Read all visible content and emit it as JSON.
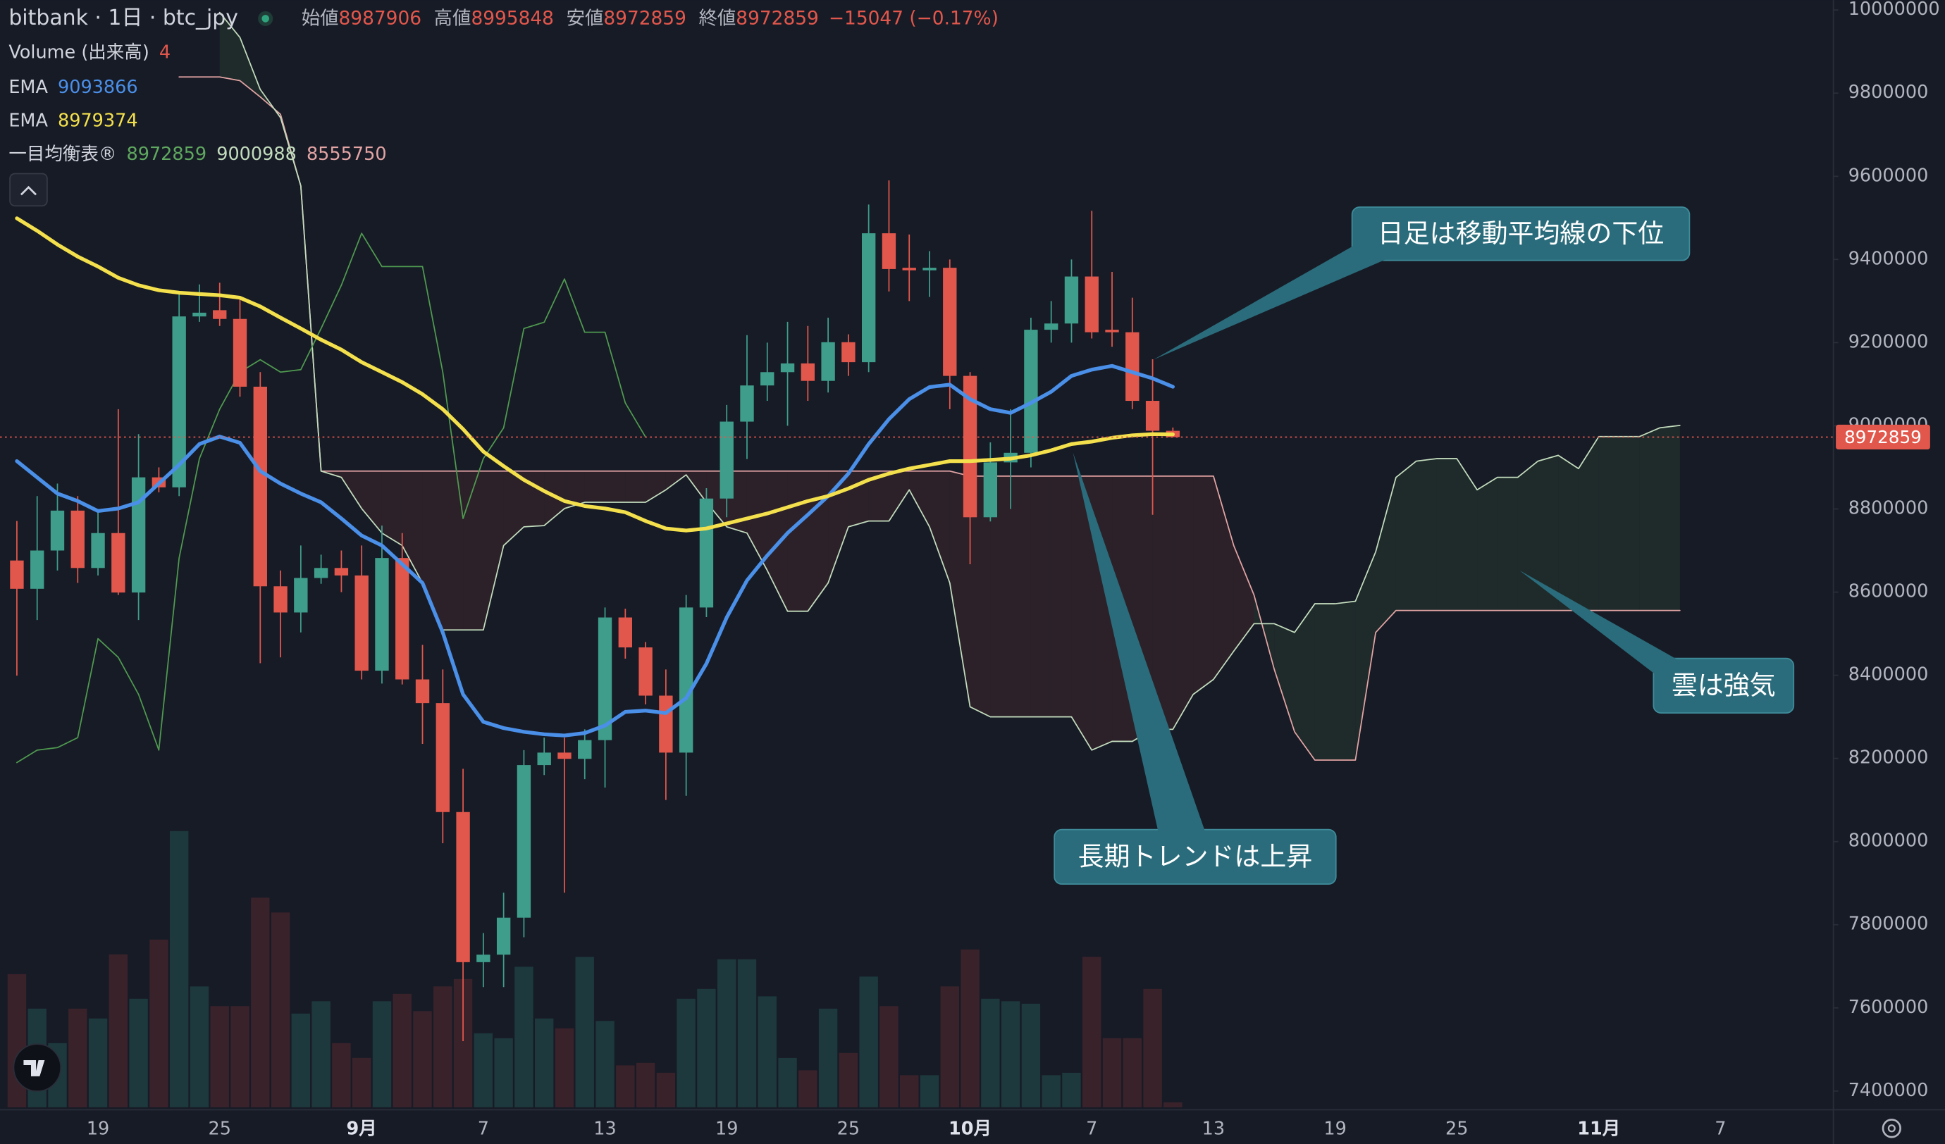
{
  "chart_data": {
    "type": "candlestick",
    "title": "bitbank · 1日 · btc_jpy",
    "categories": [
      null,
      null,
      null,
      null,
      "19",
      null,
      null,
      null,
      null,
      null,
      "25",
      null,
      null,
      null,
      null,
      null,
      null,
      "9月",
      null,
      null,
      null,
      null,
      null,
      "7",
      null,
      null,
      null,
      null,
      null,
      "13",
      null,
      null,
      null,
      null,
      null,
      "19",
      null,
      null,
      null,
      null,
      null,
      "25",
      null,
      null,
      null,
      null,
      null,
      "10月",
      null,
      null,
      null,
      null,
      null,
      "7",
      null,
      null,
      null,
      null,
      null,
      "13",
      null,
      null,
      null,
      null,
      null,
      "19",
      null,
      null,
      null,
      null,
      null,
      "25",
      null,
      null,
      null,
      null,
      null,
      null,
      "11月",
      null,
      null,
      null,
      null,
      null,
      "7",
      null,
      null,
      null,
      null
    ],
    "ohlc_labels": [
      "始値",
      "高値",
      "安値",
      "終値"
    ],
    "change_label": "−15047 (−0.17%)",
    "up_color": "#3f9e8b",
    "down_color": "#e2574c",
    "open": [
      8676000,
      8608000,
      8700000,
      8796000,
      8658000,
      8742000,
      8599000,
      8876000,
      8852000,
      9263000,
      9278000,
      9257000,
      9094000,
      8614000,
      8551000,
      8634000,
      8658000,
      8640000,
      8411000,
      8682000,
      8390000,
      8333000,
      8071000,
      7710000,
      7728000,
      7817000,
      8184000,
      8214000,
      8199000,
      8244000,
      8539000,
      8467000,
      8351000,
      8214000,
      8563000,
      8825000,
      9010000,
      9097000,
      9129000,
      9150000,
      9108000,
      9201000,
      9153000,
      9463000,
      9380000,
      9374000,
      9380000,
      9120000,
      8780000,
      8912000,
      8935000,
      9231000,
      9246000,
      9359000,
      9231000,
      9225000,
      9060000,
      8987906,
      null,
      null,
      null,
      null,
      null,
      null,
      null,
      null,
      null,
      null,
      null,
      null,
      null,
      null,
      null,
      null,
      null,
      null,
      null,
      null,
      null,
      null,
      null,
      null,
      null,
      null,
      null,
      null,
      null,
      null,
      null
    ],
    "high": [
      8771000,
      8831000,
      8861000,
      8831000,
      8800000,
      9040000,
      8980000,
      8900000,
      9323000,
      9340000,
      9344000,
      9308000,
      9129000,
      8652000,
      8712000,
      8690000,
      8700000,
      8712000,
      8760000,
      8742000,
      8473000,
      8414000,
      8175000,
      7780000,
      7877000,
      8220000,
      8250000,
      8250000,
      8270000,
      8563000,
      8560000,
      8480000,
      8414000,
      8593000,
      8850000,
      9050000,
      9218000,
      9200000,
      9250000,
      9240000,
      9260000,
      9220000,
      9532000,
      9590000,
      9460000,
      9420000,
      9400000,
      9129000,
      8960000,
      9040000,
      9260000,
      9300000,
      9400000,
      9517000,
      9370000,
      9308000,
      9160000,
      8995848,
      null,
      null,
      null,
      null,
      null,
      null,
      null,
      null,
      null,
      null,
      null,
      null,
      null,
      null,
      null,
      null,
      null,
      null,
      null,
      null,
      null,
      null,
      null,
      null,
      null,
      null,
      null,
      null,
      null,
      null,
      null
    ],
    "low": [
      8399000,
      8533000,
      8652000,
      8622000,
      8640000,
      8593000,
      8533000,
      8840000,
      8831000,
      9250000,
      9240000,
      9070000,
      8429000,
      8443000,
      8503000,
      8620000,
      8600000,
      8390000,
      8380000,
      8378000,
      8235000,
      7996000,
      7520000,
      7650000,
      7650000,
      7770000,
      8160000,
      7877000,
      8150000,
      8130000,
      8440000,
      8330000,
      8100000,
      8110000,
      8540000,
      8780000,
      8920000,
      9060000,
      9000000,
      9060000,
      9080000,
      9120000,
      9129000,
      9323000,
      9300000,
      9310000,
      9040000,
      8667000,
      8770000,
      8800000,
      8900000,
      9200000,
      9200000,
      9210000,
      9190000,
      9040000,
      8786000,
      8972859,
      null,
      null,
      null,
      null,
      null,
      null,
      null,
      null,
      null,
      null,
      null,
      null,
      null,
      null,
      null,
      null,
      null,
      null,
      null,
      null,
      null,
      null,
      null,
      null,
      null,
      null,
      null,
      null,
      null,
      null,
      null
    ],
    "close": [
      8608000,
      8700000,
      8796000,
      8658000,
      8742000,
      8599000,
      8876000,
      8852000,
      9263000,
      9272000,
      9257000,
      9094000,
      8614000,
      8551000,
      8634000,
      8658000,
      8640000,
      8411000,
      8682000,
      8390000,
      8333000,
      8071000,
      7710000,
      7728000,
      7817000,
      8184000,
      8214000,
      8199000,
      8244000,
      8539000,
      8467000,
      8351000,
      8214000,
      8563000,
      8825000,
      9010000,
      9097000,
      9129000,
      9150000,
      9108000,
      9201000,
      9153000,
      9463000,
      9377000,
      9374000,
      9380000,
      9120000,
      8780000,
      8912000,
      8935000,
      9231000,
      9246000,
      9359000,
      9225000,
      9225000,
      9060000,
      8988000,
      8972859,
      null,
      null,
      null,
      null,
      null,
      null,
      null,
      null,
      null,
      null,
      null,
      null,
      null,
      null,
      null,
      null,
      null,
      null,
      null,
      null,
      null,
      null,
      null,
      null,
      null,
      null,
      null,
      null,
      null,
      null,
      null
    ],
    "volume": {
      "name": "Volume (出来高)",
      "vlim": [
        0,
        900
      ],
      "up_color": "#1d393d",
      "down_color": "#3a222b",
      "values": [
        108,
        80,
        52,
        80,
        72,
        124,
        88,
        136,
        224,
        98,
        82,
        82,
        170,
        158,
        76,
        86,
        52,
        40,
        86,
        92,
        78,
        98,
        104,
        60,
        56,
        114,
        72,
        64,
        122,
        70,
        34,
        36,
        28,
        88,
        96,
        120,
        120,
        90,
        40,
        30,
        80,
        44,
        106,
        82,
        26,
        26,
        98,
        128,
        88,
        86,
        84,
        26,
        28,
        122,
        56,
        56,
        96,
        4,
        null,
        null,
        null,
        null,
        null,
        null,
        null,
        null,
        null,
        null,
        null,
        null,
        null,
        null,
        null,
        null,
        null,
        null,
        null,
        null,
        null,
        null,
        null,
        null,
        null,
        null,
        null,
        null,
        null,
        null,
        null
      ]
    },
    "ema": [
      {
        "name": "EMA",
        "color": "#4a8fe8",
        "values": [
          8915000,
          8876000,
          8837000,
          8819000,
          8795000,
          8801000,
          8816000,
          8861000,
          8906000,
          8956000,
          8974000,
          8959000,
          8891000,
          8861000,
          8837000,
          8816000,
          8777000,
          8736000,
          8712000,
          8667000,
          8622000,
          8503000,
          8354000,
          8288000,
          8273000,
          8264000,
          8258000,
          8255000,
          8261000,
          8279000,
          8312000,
          8315000,
          8309000,
          8345000,
          8428000,
          8539000,
          8628000,
          8688000,
          8742000,
          8786000,
          8831000,
          8885000,
          8956000,
          9016000,
          9064000,
          9093000,
          9099000,
          9064000,
          9040000,
          9031000,
          9055000,
          9082000,
          9120000,
          9135000,
          9144000,
          9129000,
          9114000,
          9093866,
          null,
          null,
          null,
          null,
          null,
          null,
          null,
          null,
          null,
          null,
          null,
          null,
          null,
          null,
          null,
          null,
          null,
          null,
          null,
          null,
          null,
          null,
          null,
          null,
          null,
          null,
          null,
          null,
          null,
          null,
          null
        ]
      },
      {
        "name": "EMA",
        "color": "#f3e04c",
        "values": [
          9499000,
          9469000,
          9436000,
          9407000,
          9383000,
          9356000,
          9338000,
          9326000,
          9320000,
          9317000,
          9314000,
          9308000,
          9287000,
          9260000,
          9234000,
          9207000,
          9183000,
          9153000,
          9129000,
          9105000,
          9076000,
          9040000,
          8992000,
          8938000,
          8903000,
          8870000,
          8843000,
          8819000,
          8807000,
          8801000,
          8792000,
          8771000,
          8753000,
          8748000,
          8753000,
          8765000,
          8777000,
          8789000,
          8804000,
          8819000,
          8831000,
          8849000,
          8870000,
          8885000,
          8897000,
          8906000,
          8915000,
          8915000,
          8918000,
          8921000,
          8929000,
          8941000,
          8956000,
          8962000,
          8971000,
          8977000,
          8980000,
          8979374,
          null,
          null,
          null,
          null,
          null,
          null,
          null,
          null,
          null,
          null,
          null,
          null,
          null,
          null,
          null,
          null,
          null,
          null,
          null,
          null,
          null,
          null,
          null,
          null,
          null,
          null,
          null,
          null,
          null,
          null,
          null
        ]
      }
    ],
    "ichimoku": {
      "name": "一目均衡表®",
      "cloud_up_color": "#1f2b2b",
      "cloud_down_color": "#2c2129",
      "lagging": {
        "color": "#4f9a4f",
        "values": [
          8190000,
          8220000,
          8226000,
          8250000,
          8488000,
          8443000,
          8354000,
          8220000,
          8682000,
          8921000,
          9040000,
          9129000,
          9159000,
          9129000,
          9135000,
          9234000,
          9338000,
          9463000,
          9383000,
          9383000,
          9383000,
          9129000,
          8777000,
          8921000,
          8995000,
          9234000,
          9249000,
          9353000,
          9225000,
          9225000,
          9055000,
          8972859,
          null,
          null,
          null,
          null,
          null,
          null,
          null,
          null,
          null,
          null,
          null,
          null,
          null,
          null,
          null,
          null,
          null,
          null,
          null,
          null,
          null,
          null,
          null,
          null,
          null,
          null,
          null,
          null,
          null,
          null,
          null,
          null,
          null,
          null,
          null,
          null,
          null,
          null,
          null,
          null,
          null,
          null,
          null,
          null,
          null,
          null,
          null,
          null,
          null,
          null,
          null,
          null,
          null,
          null,
          null,
          null,
          null
        ]
      },
      "span_a": {
        "color": "#c3dcbd",
        "values": [
          null,
          null,
          null,
          null,
          null,
          null,
          null,
          null,
          null,
          null,
          9994000,
          9934000,
          9809000,
          9741000,
          9577000,
          8891000,
          8876000,
          8801000,
          8742000,
          8712000,
          8622000,
          8509000,
          8509000,
          8509000,
          8712000,
          8757000,
          8760000,
          8801000,
          8816000,
          8816000,
          8816000,
          8816000,
          8846000,
          8882000,
          8816000,
          8757000,
          8742000,
          8652000,
          8554000,
          8554000,
          8622000,
          8757000,
          8771000,
          8771000,
          8846000,
          8757000,
          8622000,
          8324000,
          8300000,
          8300000,
          8300000,
          8300000,
          8300000,
          8220000,
          8241000,
          8241000,
          8270000,
          8270000,
          8354000,
          8390000,
          8458000,
          8524000,
          8524000,
          8503000,
          8572000,
          8572000,
          8578000,
          8697000,
          8876000,
          8915000,
          8921000,
          8921000,
          8846000,
          8876000,
          8876000,
          8915000,
          8929000,
          8897000,
          8974000,
          8974000,
          8974000,
          8995000,
          9000988,
          null,
          null,
          null,
          null,
          null,
          null
        ]
      },
      "span_b": {
        "color": "#e3a4a4",
        "values": [
          null,
          null,
          null,
          null,
          null,
          null,
          null,
          null,
          9839000,
          9839000,
          9839000,
          9830000,
          9791000,
          9749000,
          9577000,
          8891000,
          8891000,
          8891000,
          8891000,
          8891000,
          8891000,
          8891000,
          8891000,
          8891000,
          8891000,
          8891000,
          8891000,
          8891000,
          8891000,
          8891000,
          8891000,
          8891000,
          8891000,
          8891000,
          8891000,
          8891000,
          8891000,
          8891000,
          8891000,
          8891000,
          8891000,
          8891000,
          8891000,
          8891000,
          8891000,
          8891000,
          8891000,
          8879000,
          8879000,
          8879000,
          8879000,
          8879000,
          8879000,
          8879000,
          8879000,
          8879000,
          8879000,
          8879000,
          8879000,
          8879000,
          8712000,
          8593000,
          8414000,
          8264000,
          8196000,
          8196000,
          8196000,
          8503000,
          8555750,
          8555750,
          8555750,
          8555750,
          8555750,
          8555750,
          8555750,
          8555750,
          8555750,
          8555750,
          8555750,
          8555750,
          8555750,
          8555750,
          8555750,
          null,
          null,
          null,
          null,
          null,
          null
        ]
      }
    },
    "ylim": [
      7355000,
      10024000
    ],
    "yticks": [
      7400000,
      7600000,
      7800000,
      8000000,
      8200000,
      8400000,
      8600000,
      8800000,
      9000000,
      9200000,
      9400000,
      9600000,
      9800000,
      10000000
    ],
    "annotations": [
      {
        "text": "日足は移動平均線の下位"
      },
      {
        "text": "長期トレンドは上昇"
      },
      {
        "text": "雲は強気"
      }
    ]
  }
}
